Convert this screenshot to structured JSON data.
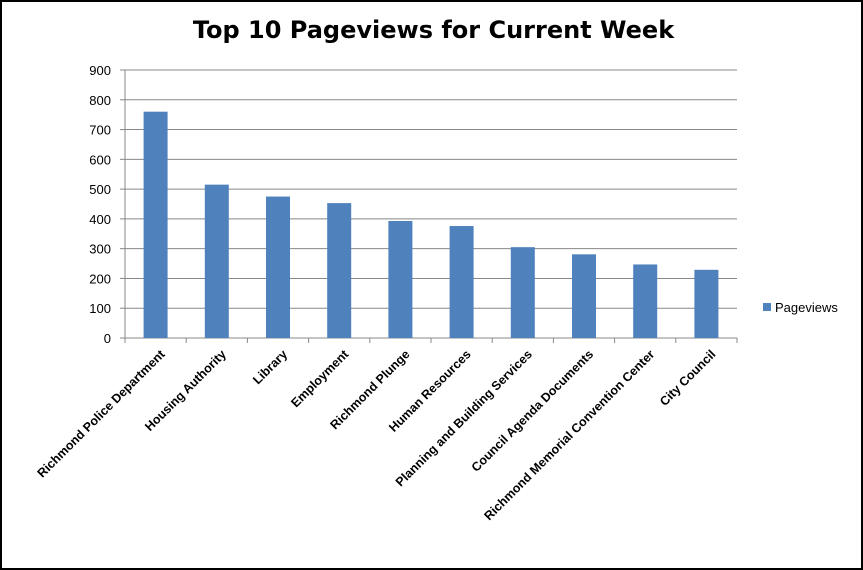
{
  "chart_data": {
    "type": "bar",
    "title": "Top 10 Pageviews for Current Week",
    "xlabel": "",
    "ylabel": "",
    "ylim": [
      0,
      900
    ],
    "yticks": [
      0,
      100,
      200,
      300,
      400,
      500,
      600,
      700,
      800,
      900
    ],
    "grid": true,
    "legend": "right",
    "categories": [
      "Richmond Police Department",
      "Housing Authority",
      "Library",
      "Employment",
      "Richmond Plunge",
      "Human Resources",
      "Planning and Building Services",
      "Council Agenda Documents",
      "Richmond Memorial Convention Center",
      "City Council"
    ],
    "series": [
      {
        "name": "Pageviews",
        "color": "#4f81bd",
        "values": [
          760,
          515,
          475,
          453,
          393,
          376,
          305,
          281,
          247,
          229
        ]
      }
    ]
  }
}
